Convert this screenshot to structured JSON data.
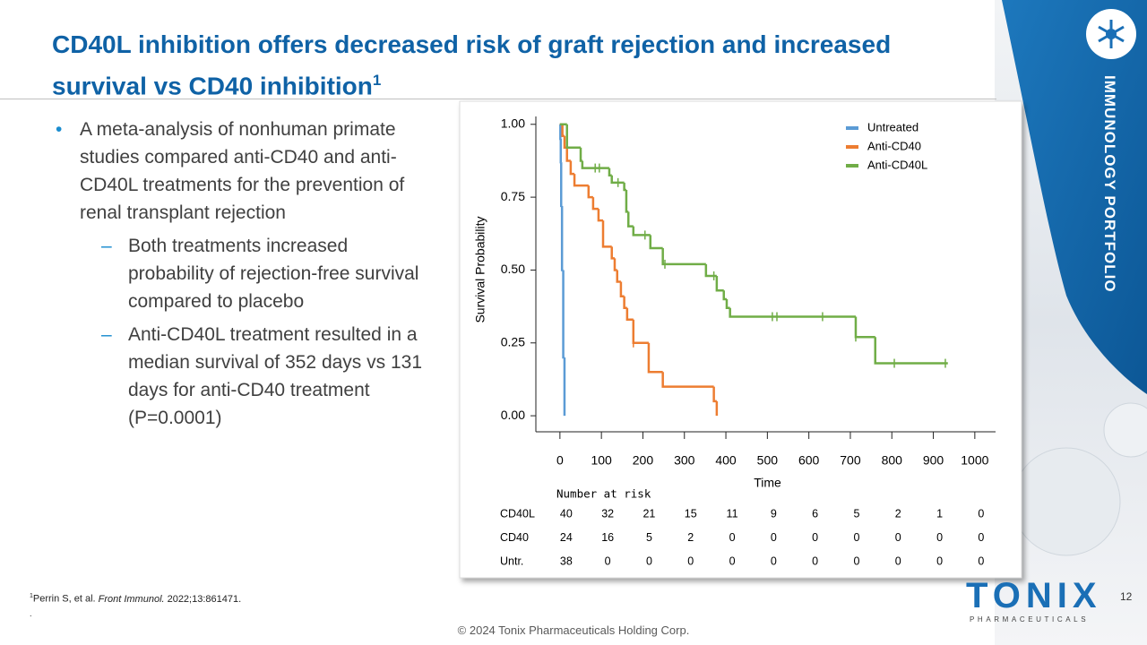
{
  "header": {
    "title": "CD40L inhibition offers decreased risk of graft rejection and increased survival vs CD40 inhibition",
    "title_sup": "1"
  },
  "bullets": [
    {
      "text": "A meta-analysis of nonhuman primate studies compared anti-CD40 and anti-CD40L treatments for the prevention of renal transplant rejection",
      "sub": [
        "Both treatments increased probability of rejection-free survival compared to placebo",
        "Anti-CD40L treatment resulted in a median survival of 352 days vs 131 days for anti-CD40 treatment (P=0.0001)"
      ]
    }
  ],
  "chart_data": {
    "type": "step",
    "xlabel": "Time",
    "ylabel": "Survival Probability",
    "xlim": [
      -58,
      1050
    ],
    "ylim": [
      -0.055,
      1.07
    ],
    "xticks": [
      0,
      100,
      200,
      300,
      400,
      500,
      600,
      700,
      800,
      900,
      1000
    ],
    "yticks": [
      {
        "value": 0,
        "label": "0.00"
      },
      {
        "value": 0.25,
        "label": "0.25"
      },
      {
        "value": 0.5,
        "label": "0.50"
      },
      {
        "value": 0.75,
        "label": "0.75"
      },
      {
        "value": 1,
        "label": "1.00"
      }
    ],
    "legend": "upper right",
    "series": [
      {
        "name": "Untreated",
        "color": "#5b9bd5",
        "x": [
          0,
          1,
          2,
          3,
          5,
          8,
          11
        ],
        "values": [
          1,
          0.95,
          0.87,
          0.72,
          0.5,
          0.2,
          0
        ],
        "censored": []
      },
      {
        "name": "Anti-CD40",
        "color": "#ed7d31",
        "x": [
          0,
          6,
          11,
          17,
          26,
          35,
          69,
          80,
          93,
          104,
          125,
          132,
          138,
          147,
          155,
          162,
          177,
          214,
          248,
          371,
          378
        ],
        "values": [
          1,
          0.96,
          0.92,
          0.875,
          0.83,
          0.79,
          0.75,
          0.71,
          0.67,
          0.58,
          0.54,
          0.5,
          0.46,
          0.41,
          0.37,
          0.33,
          0.25,
          0.15,
          0.1,
          0.05,
          0
        ],
        "censored": [
          177
        ]
      },
      {
        "name": "Anti-CD40L",
        "color": "#70ad47",
        "x": [
          0,
          17,
          50,
          54,
          119,
          125,
          155,
          160,
          165,
          177,
          218,
          248,
          352,
          378,
          395,
          402,
          410,
          713,
          760,
          935
        ],
        "values": [
          1,
          0.92,
          0.875,
          0.85,
          0.825,
          0.8,
          0.775,
          0.7,
          0.65,
          0.62,
          0.575,
          0.52,
          0.48,
          0.43,
          0.4,
          0.37,
          0.34,
          0.27,
          0.18,
          0.18
        ],
        "censored": [
          85,
          95,
          140,
          205,
          253,
          371,
          512,
          523,
          633,
          713,
          806,
          929
        ]
      }
    ]
  },
  "risk_table": {
    "title": "Number at risk",
    "rows": [
      {
        "label": "CD40L",
        "values": [
          40,
          32,
          21,
          15,
          11,
          9,
          6,
          5,
          2,
          1,
          0
        ]
      },
      {
        "label": "CD40",
        "values": [
          24,
          16,
          5,
          2,
          0,
          0,
          0,
          0,
          0,
          0,
          0
        ]
      },
      {
        "label": "Untr.",
        "values": [
          38,
          0,
          0,
          0,
          0,
          0,
          0,
          0,
          0,
          0,
          0
        ]
      }
    ]
  },
  "footnote": {
    "marker": "1",
    "authors": "Perrin S, et al.",
    "journal": "Front Immunol.",
    "details": "2022;13:861471.",
    "extra": "."
  },
  "copyright": "© 2024 Tonix Pharmaceuticals Holding Corp.",
  "page_number": "12",
  "side_label": "IMMUNOLOGY PORTFOLIO",
  "logo": {
    "name": "TONIX",
    "tagline": "PHARMACEUTICALS"
  }
}
